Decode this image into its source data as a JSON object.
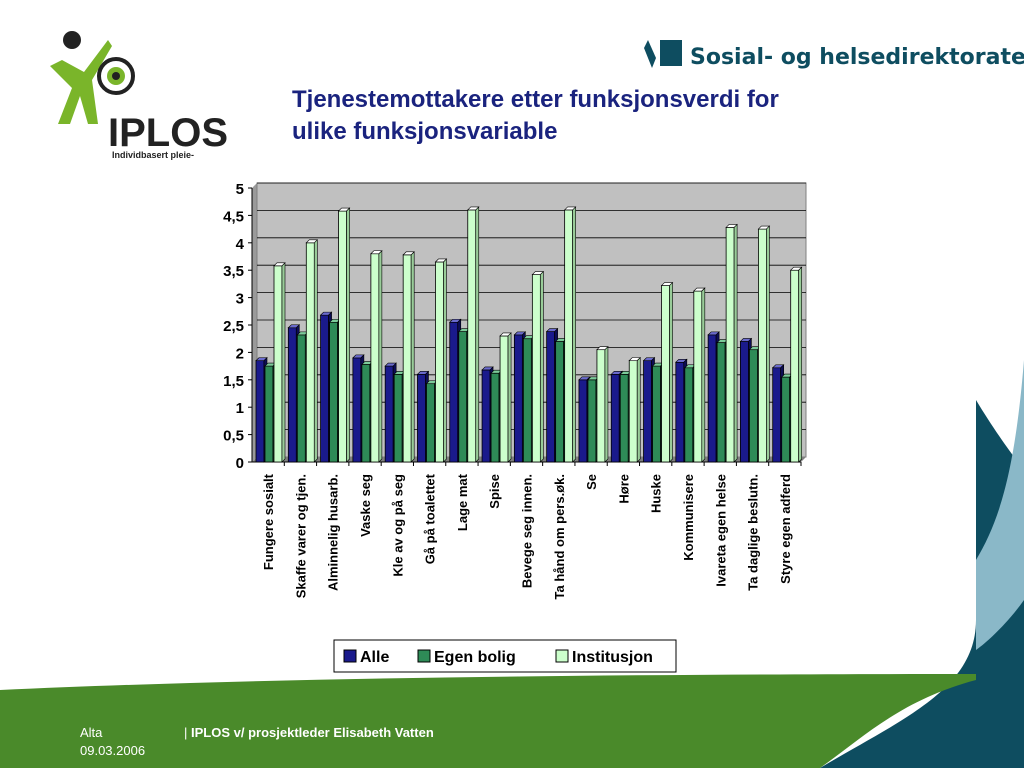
{
  "logo": {
    "name": "IPLOS",
    "tagline": "Individbasert pleie-"
  },
  "brand": {
    "text": "Sosial- og helsedirektoratet"
  },
  "slide": {
    "title_line1": "Tjenestemottakere etter funksjonsverdi for",
    "title_line2": "ulike funksjonsvariable"
  },
  "footer": {
    "place": "Alta",
    "date": "09.03.2006",
    "separator": "|",
    "presenter": "IPLOS v/ prosjektleder Elisabeth Vatten"
  },
  "colors": {
    "title": "#1a237e",
    "alle": "#1a1a8c",
    "egen_bolig": "#2e8b57",
    "institusjon": "#ccffcc",
    "plot_bg": "#c0c0c0",
    "green_band": "#4a8a2a",
    "teal": "#0e4d60"
  },
  "chart_data": {
    "type": "bar",
    "categories": [
      "Fungere sosialt",
      "Skaffe varer og tjen.",
      "Alminnelig husarb.",
      "Vaske seg",
      "Kle av og på seg",
      "Gå på toalettet",
      "Lage mat",
      "Spise",
      "Bevege seg innen.",
      "Ta hånd om pers.øk.",
      "Se",
      "Høre",
      "Huske",
      "Kommunisere",
      "Ivareta egen helse",
      "Ta daglige beslutn.",
      "Styre egen adferd"
    ],
    "series": [
      {
        "name": "Alle",
        "values": [
          1.85,
          2.45,
          2.68,
          1.9,
          1.75,
          1.6,
          2.55,
          1.68,
          2.32,
          2.38,
          1.5,
          1.6,
          1.85,
          1.82,
          2.32,
          2.2,
          1.72
        ]
      },
      {
        "name": "Egen bolig",
        "values": [
          1.75,
          2.32,
          2.55,
          1.78,
          1.6,
          1.43,
          2.38,
          1.62,
          2.25,
          2.2,
          1.5,
          1.6,
          1.75,
          1.72,
          2.18,
          2.05,
          1.55
        ]
      },
      {
        "name": "Institusjon",
        "values": [
          3.58,
          4.0,
          4.58,
          3.8,
          3.78,
          3.65,
          4.6,
          2.3,
          3.42,
          4.6,
          2.05,
          1.85,
          3.22,
          3.12,
          4.28,
          4.25,
          3.5
        ]
      }
    ],
    "yticks": [
      "0",
      "0,5",
      "1",
      "1,5",
      "2",
      "2,5",
      "3",
      "3,5",
      "4",
      "4,5",
      "5"
    ],
    "ylim": [
      0,
      5
    ],
    "grid": true,
    "legend": "bottom"
  }
}
